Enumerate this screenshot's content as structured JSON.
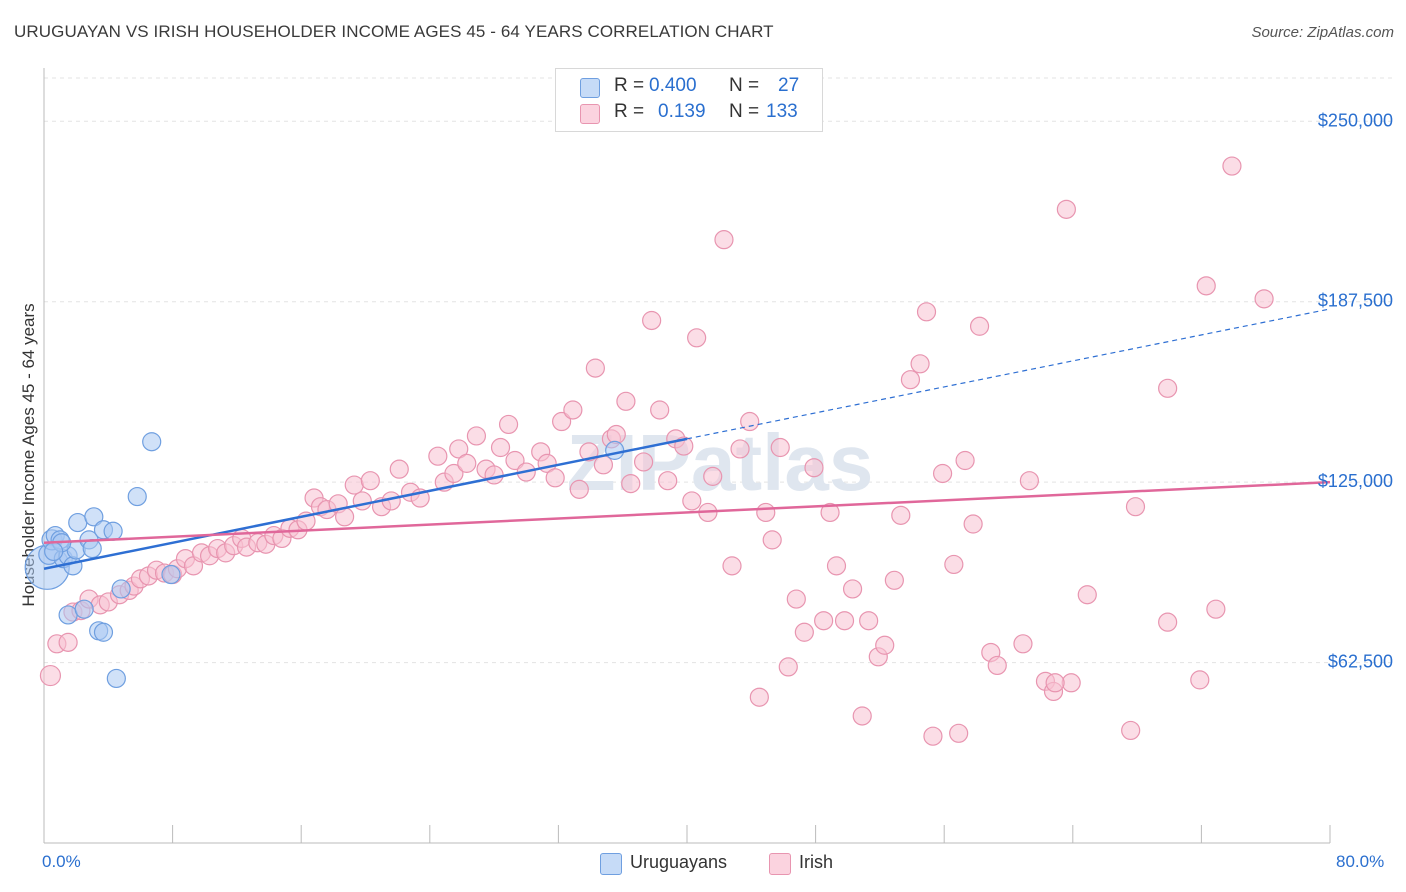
{
  "title": "URUGUAYAN VS IRISH HOUSEHOLDER INCOME AGES 45 - 64 YEARS CORRELATION CHART",
  "source": "Source: ZipAtlas.com",
  "watermark": "ZIPatlas",
  "legend": {
    "rows": [
      {
        "r_label": "R =",
        "r_value": "0.400",
        "n_label": "N =",
        "n_value": "27",
        "color": "#a9c8f3",
        "border": "#6f9fe0"
      },
      {
        "r_label": "R =",
        "r_value": "0.139",
        "n_label": "N =",
        "n_value": "133",
        "color": "#f7c1d1",
        "border": "#e895b0"
      }
    ]
  },
  "bottom_legend": [
    {
      "label": "Uruguayans",
      "color": "#a9c8f3",
      "border": "#6f9fe0"
    },
    {
      "label": "Irish",
      "color": "#f7c1d1",
      "border": "#e895b0"
    }
  ],
  "chart_data": {
    "type": "scatter",
    "ylabel": "Householder Income Ages 45 - 64 years",
    "xlim": [
      0,
      80
    ],
    "ylim": [
      0,
      265000
    ],
    "x_tick_labels": [
      {
        "value": 0,
        "label": "0.0%"
      },
      {
        "value": 80,
        "label": "80.0%"
      }
    ],
    "y_ticks": [
      {
        "value": 62500,
        "label": "$62,500"
      },
      {
        "value": 125000,
        "label": "$125,000"
      },
      {
        "value": 187500,
        "label": "$187,500"
      },
      {
        "value": 250000,
        "label": "$250,000"
      }
    ],
    "grid": "horizontal dashed",
    "series": [
      {
        "name": "Uruguayans",
        "color": "#6f9fe0",
        "fill": "#a9c8f3",
        "trend": {
          "x0": 0,
          "y0": 95000,
          "x1": 40,
          "y1": 140000,
          "dash_to_x": 80,
          "dash_to_y": 185000,
          "color": "#2e6fd3"
        },
        "points": [
          [
            0.2,
            95500,
            22
          ],
          [
            0.3,
            100000,
            10
          ],
          [
            0.5,
            105000,
            10
          ],
          [
            0.7,
            106500,
            9
          ],
          [
            1.0,
            105000,
            9
          ],
          [
            1.2,
            98500,
            9
          ],
          [
            1.5,
            99500,
            9
          ],
          [
            1.8,
            96000,
            9
          ],
          [
            2.0,
            101500,
            9
          ],
          [
            2.1,
            111000,
            9
          ],
          [
            2.8,
            105000,
            9
          ],
          [
            3.0,
            102000,
            9
          ],
          [
            3.1,
            113000,
            9
          ],
          [
            3.7,
            108500,
            9
          ],
          [
            4.3,
            108000,
            9
          ],
          [
            1.5,
            79000,
            9
          ],
          [
            2.5,
            81000,
            9
          ],
          [
            3.4,
            73500,
            9
          ],
          [
            3.7,
            73000,
            9
          ],
          [
            4.8,
            88000,
            9
          ],
          [
            5.8,
            120000,
            9
          ],
          [
            6.7,
            139000,
            9
          ],
          [
            7.9,
            93000,
            9
          ],
          [
            4.5,
            57000,
            9
          ],
          [
            35.5,
            136000,
            9
          ],
          [
            1.1,
            104000,
            9
          ],
          [
            0.6,
            101000,
            9
          ]
        ]
      },
      {
        "name": "Irish",
        "color": "#e895b0",
        "fill": "#f7c1d1",
        "trend": {
          "x0": 0,
          "y0": 104000,
          "x1": 80,
          "y1": 125000,
          "color": "#e0679a"
        },
        "points": [
          [
            0.4,
            58000,
            10
          ],
          [
            0.8,
            69000,
            9
          ],
          [
            1.5,
            69500,
            9
          ],
          [
            1.8,
            80000,
            9
          ],
          [
            2.3,
            80500,
            9
          ],
          [
            2.8,
            84500,
            9
          ],
          [
            3.5,
            82500,
            9
          ],
          [
            4.0,
            83500,
            9
          ],
          [
            4.7,
            86000,
            9
          ],
          [
            5.3,
            87500,
            9
          ],
          [
            5.6,
            89000,
            9
          ],
          [
            6.0,
            91500,
            9
          ],
          [
            6.5,
            92500,
            9
          ],
          [
            7.0,
            94500,
            9
          ],
          [
            7.5,
            93500,
            9
          ],
          [
            8.0,
            93000,
            9
          ],
          [
            8.3,
            95000,
            9
          ],
          [
            8.8,
            98500,
            9
          ],
          [
            9.3,
            96000,
            9
          ],
          [
            9.8,
            100500,
            9
          ],
          [
            10.3,
            99500,
            9
          ],
          [
            10.8,
            102000,
            9
          ],
          [
            11.3,
            100500,
            9
          ],
          [
            11.8,
            103000,
            9
          ],
          [
            12.3,
            105500,
            9
          ],
          [
            12.6,
            102500,
            9
          ],
          [
            13.3,
            104000,
            9
          ],
          [
            13.8,
            103500,
            9
          ],
          [
            14.3,
            106500,
            9
          ],
          [
            14.8,
            105500,
            9
          ],
          [
            15.3,
            109000,
            9
          ],
          [
            15.8,
            108500,
            9
          ],
          [
            16.3,
            111500,
            9
          ],
          [
            16.8,
            119500,
            9
          ],
          [
            17.2,
            116500,
            9
          ],
          [
            17.6,
            115500,
            9
          ],
          [
            18.3,
            117500,
            9
          ],
          [
            18.7,
            113000,
            9
          ],
          [
            19.3,
            124000,
            9
          ],
          [
            19.8,
            118500,
            9
          ],
          [
            20.3,
            125500,
            9
          ],
          [
            21.0,
            116500,
            9
          ],
          [
            21.6,
            118500,
            9
          ],
          [
            22.1,
            129500,
            9
          ],
          [
            22.8,
            121500,
            9
          ],
          [
            23.4,
            119500,
            9
          ],
          [
            24.5,
            134000,
            9
          ],
          [
            24.9,
            125000,
            9
          ],
          [
            25.5,
            128000,
            9
          ],
          [
            25.8,
            136500,
            9
          ],
          [
            26.3,
            131500,
            9
          ],
          [
            26.9,
            141000,
            9
          ],
          [
            27.5,
            129500,
            9
          ],
          [
            28.0,
            127500,
            9
          ],
          [
            28.4,
            137000,
            9
          ],
          [
            28.9,
            145000,
            9
          ],
          [
            29.3,
            132500,
            9
          ],
          [
            30.0,
            128500,
            9
          ],
          [
            30.9,
            135500,
            9
          ],
          [
            31.3,
            131500,
            9
          ],
          [
            31.8,
            126500,
            9
          ],
          [
            32.2,
            146000,
            9
          ],
          [
            32.9,
            150000,
            9
          ],
          [
            33.3,
            122500,
            9
          ],
          [
            33.9,
            135500,
            9
          ],
          [
            34.3,
            164500,
            9
          ],
          [
            34.8,
            131000,
            9
          ],
          [
            35.3,
            140000,
            9
          ],
          [
            35.6,
            141500,
            9
          ],
          [
            36.2,
            153000,
            9
          ],
          [
            36.5,
            124500,
            9
          ],
          [
            37.3,
            132000,
            9
          ],
          [
            37.8,
            181000,
            9
          ],
          [
            38.3,
            150000,
            9
          ],
          [
            38.8,
            125500,
            9
          ],
          [
            39.3,
            140000,
            9
          ],
          [
            39.8,
            137500,
            9
          ],
          [
            40.3,
            118500,
            9
          ],
          [
            40.6,
            175000,
            9
          ],
          [
            41.3,
            114500,
            9
          ],
          [
            41.6,
            127000,
            9
          ],
          [
            42.3,
            209000,
            9
          ],
          [
            42.8,
            96000,
            9
          ],
          [
            43.3,
            136500,
            9
          ],
          [
            43.9,
            146000,
            9
          ],
          [
            44.5,
            50500,
            9
          ],
          [
            44.9,
            114500,
            9
          ],
          [
            45.3,
            105000,
            9
          ],
          [
            45.8,
            137000,
            9
          ],
          [
            46.3,
            61000,
            9
          ],
          [
            46.8,
            84500,
            9
          ],
          [
            47.3,
            73000,
            9
          ],
          [
            47.9,
            130000,
            9
          ],
          [
            48.5,
            77000,
            9
          ],
          [
            48.9,
            114500,
            9
          ],
          [
            49.3,
            96000,
            9
          ],
          [
            49.8,
            77000,
            9
          ],
          [
            50.3,
            88000,
            9
          ],
          [
            50.9,
            44000,
            9
          ],
          [
            51.3,
            77000,
            9
          ],
          [
            51.9,
            64500,
            9
          ],
          [
            52.3,
            68500,
            9
          ],
          [
            52.9,
            91000,
            9
          ],
          [
            53.3,
            113500,
            9
          ],
          [
            53.9,
            160500,
            9
          ],
          [
            54.5,
            166000,
            9
          ],
          [
            54.9,
            184000,
            9
          ],
          [
            55.3,
            37000,
            9
          ],
          [
            55.9,
            128000,
            9
          ],
          [
            56.6,
            96500,
            9
          ],
          [
            56.9,
            38000,
            9
          ],
          [
            57.3,
            132500,
            9
          ],
          [
            57.8,
            110500,
            9
          ],
          [
            58.2,
            179000,
            9
          ],
          [
            58.9,
            66000,
            9
          ],
          [
            59.3,
            61500,
            9
          ],
          [
            60.9,
            69000,
            9
          ],
          [
            61.3,
            125500,
            9
          ],
          [
            62.3,
            56000,
            9
          ],
          [
            62.8,
            52500,
            9
          ],
          [
            63.9,
            55500,
            9
          ],
          [
            62.9,
            55500,
            9
          ],
          [
            63.6,
            219500,
            9
          ],
          [
            64.9,
            86000,
            9
          ],
          [
            67.9,
            116500,
            9
          ],
          [
            67.6,
            39000,
            9
          ],
          [
            69.9,
            76500,
            9
          ],
          [
            69.9,
            157500,
            9
          ],
          [
            71.9,
            56500,
            9
          ],
          [
            72.3,
            193000,
            9
          ],
          [
            72.9,
            81000,
            9
          ],
          [
            73.9,
            234500,
            9
          ],
          [
            75.9,
            188500,
            9
          ]
        ]
      }
    ]
  }
}
